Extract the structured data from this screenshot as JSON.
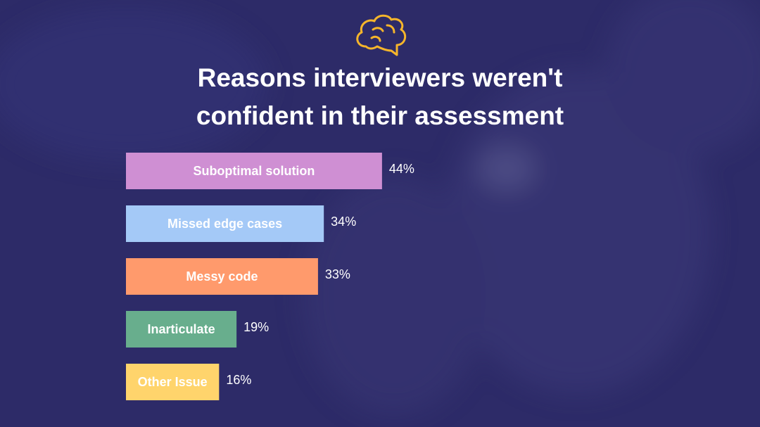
{
  "chart_data": {
    "type": "bar",
    "orientation": "horizontal",
    "title": "Reasons interviewers weren't confident in their assessment",
    "categories": [
      "Suboptimal solution",
      "Missed edge cases",
      "Messy code",
      "Inarticulate",
      "Other Issue"
    ],
    "values": [
      44,
      34,
      33,
      19,
      16
    ],
    "value_labels": [
      "44%",
      "34%",
      "33%",
      "19%",
      "16%"
    ],
    "colors": [
      "#cf8fd3",
      "#a4c9f7",
      "#ff9a6c",
      "#68ae8d",
      "#ffd46c"
    ]
  }
}
